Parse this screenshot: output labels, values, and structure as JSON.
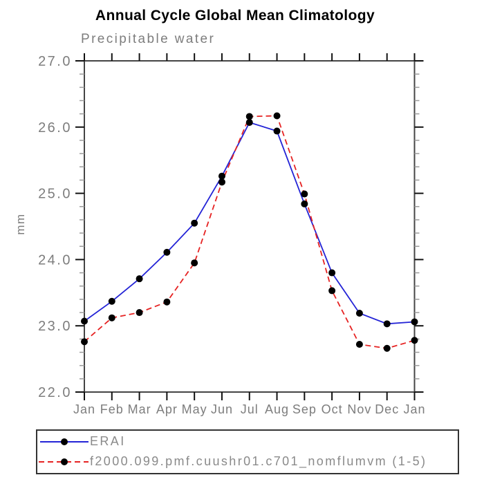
{
  "header": {
    "title": "Annual Cycle Global Mean Climatology"
  },
  "chart_data": {
    "type": "line",
    "title": "Annual Cycle Global Mean Climatology",
    "subtitle": "Precipitable water",
    "xlabel": "",
    "ylabel": "mm",
    "x_categories": [
      "Jan",
      "Feb",
      "Mar",
      "Apr",
      "May",
      "Jun",
      "Jul",
      "Aug",
      "Sep",
      "Oct",
      "Nov",
      "Dec",
      "Jan"
    ],
    "ylim": [
      22.0,
      27.0
    ],
    "ytick_labels": [
      "27.0",
      "26.0",
      "25.0",
      "24.0",
      "23.0",
      "22.0"
    ],
    "ytick_minor_step": 0.2,
    "grid": false,
    "legend_position": "bottom-left-box",
    "axis_colors": {
      "spine": "#444444",
      "major_tick": "#111111",
      "minor_tick": "#9a9a9a",
      "tick_label": "#7d7d7d"
    },
    "series": [
      {
        "name": "ERAI",
        "color": "#2323d6",
        "line_style": "solid",
        "marker": "circle",
        "marker_color": "#000000",
        "values": [
          23.07,
          23.37,
          23.71,
          24.11,
          24.55,
          25.26,
          26.07,
          25.94,
          24.84,
          23.8,
          23.19,
          23.03,
          23.06
        ]
      },
      {
        "name": "f2000.099.pmf.cuushr01.c701_nomflumvm (1-5)",
        "color": "#e62222",
        "line_style": "dashed",
        "marker": "circle",
        "marker_color": "#000000",
        "values": [
          22.76,
          23.12,
          23.2,
          23.36,
          23.95,
          25.17,
          26.16,
          26.17,
          24.99,
          23.53,
          22.72,
          22.66,
          22.78
        ]
      }
    ]
  }
}
